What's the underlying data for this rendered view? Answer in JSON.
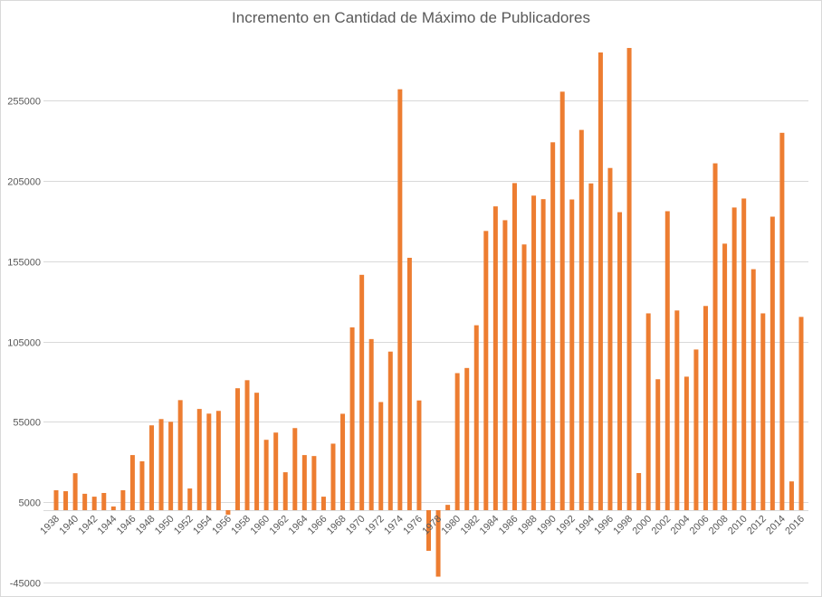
{
  "chart_data": {
    "type": "bar",
    "title": "Incremento en Cantidad de Máximo de Publicadores",
    "xlabel": "",
    "ylabel": "",
    "ylim": [
      -45000,
      300000
    ],
    "yticks": [
      -45000,
      5000,
      55000,
      105000,
      155000,
      205000,
      255000
    ],
    "grid": true,
    "legend": "none",
    "bar_color": "#ED7D31",
    "categories": [
      "1938",
      "1939",
      "1940",
      "1941",
      "1942",
      "1943",
      "1944",
      "1945",
      "1946",
      "1947",
      "1948",
      "1949",
      "1950",
      "1951",
      "1952",
      "1953",
      "1954",
      "1955",
      "1956",
      "1957",
      "1958",
      "1959",
      "1960",
      "1961",
      "1962",
      "1963",
      "1964",
      "1965",
      "1966",
      "1967",
      "1968",
      "1969",
      "1970",
      "1971",
      "1972",
      "1973",
      "1974",
      "1975",
      "1976",
      "1977",
      "1978",
      "1979",
      "1980",
      "1981",
      "1982",
      "1983",
      "1984",
      "1985",
      "1986",
      "1987",
      "1988",
      "1989",
      "1990",
      "1991",
      "1992",
      "1993",
      "1994",
      "1995",
      "1996",
      "1997",
      "1998",
      "1999",
      "2000",
      "2001",
      "2002",
      "2003",
      "2004",
      "2005",
      "2006",
      "2007",
      "2008",
      "2009",
      "2010",
      "2011",
      "2012",
      "2013",
      "2014",
      "2015",
      "2016"
    ],
    "values": [
      12400,
      11800,
      23000,
      10200,
      8400,
      10700,
      2300,
      12400,
      34300,
      30400,
      52800,
      56700,
      55000,
      68500,
      13500,
      63000,
      60100,
      61800,
      -2800,
      75900,
      80900,
      73100,
      43800,
      48300,
      23600,
      51100,
      34300,
      33700,
      8400,
      41400,
      60000,
      113800,
      146500,
      106500,
      67300,
      98700,
      262000,
      157100,
      68300,
      -25300,
      -41400,
      3300,
      85300,
      88500,
      115100,
      173800,
      189100,
      180500,
      203600,
      165400,
      195800,
      193600,
      229000,
      260500,
      193400,
      236700,
      203400,
      284900,
      213000,
      185500,
      287700,
      23100,
      122500,
      81500,
      186100,
      124300,
      83100,
      100000,
      127100,
      215900,
      165900,
      188400,
      194000,
      150000,
      122500,
      182700,
      234900,
      17900,
      120300
    ],
    "xtick_labels": [
      "1938",
      "1940",
      "1942",
      "1944",
      "1946",
      "1948",
      "1950",
      "1952",
      "1954",
      "1956",
      "1958",
      "1960",
      "1962",
      "1964",
      "1966",
      "1968",
      "1970",
      "1972",
      "1974",
      "1976",
      "1978",
      "1980",
      "1982",
      "1984",
      "1986",
      "1988",
      "1990",
      "1992",
      "1994",
      "1996",
      "1998",
      "2000",
      "2002",
      "2004",
      "2006",
      "2008",
      "2010",
      "2012",
      "2014",
      "2016"
    ]
  }
}
